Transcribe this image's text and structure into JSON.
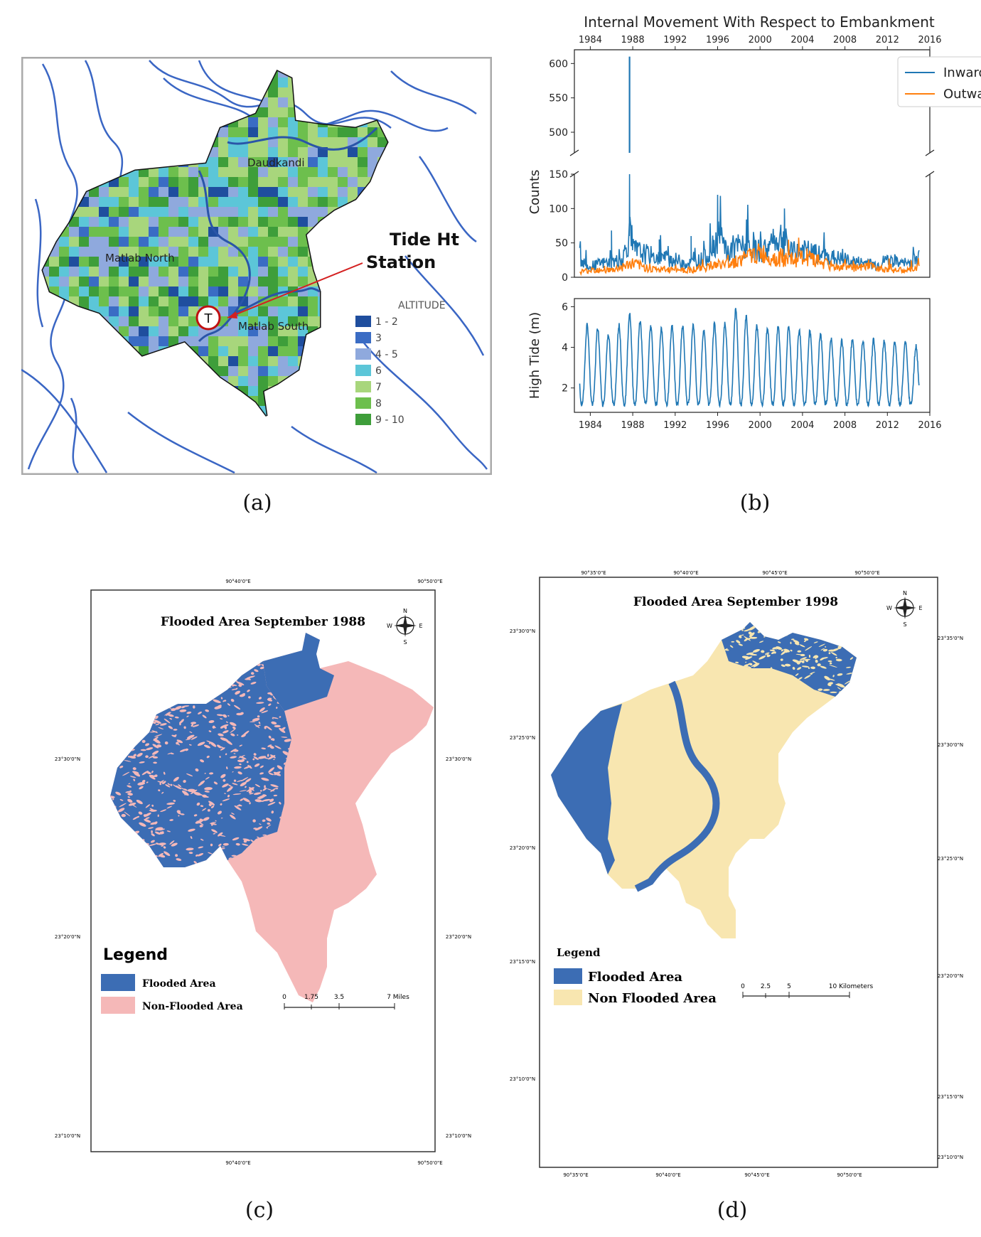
{
  "panel_a": {
    "caption": "(a)",
    "region_labels": [
      "Daudkandi",
      "Matlab North",
      "Matlab South"
    ],
    "station_label_line1": "Tide Ht",
    "station_label_line2": "Station",
    "station_marker": "T",
    "legend_title": "ALTITUDE",
    "legend": [
      {
        "label": "1 - 2",
        "color": "#1f4e9e"
      },
      {
        "label": "3",
        "color": "#3a6cc4"
      },
      {
        "label": "4 - 5",
        "color": "#8fa9dd"
      },
      {
        "label": "6",
        "color": "#5cc6d8"
      },
      {
        "label": "7",
        "color": "#a8d67c"
      },
      {
        "label": "8",
        "color": "#6dbf4d"
      },
      {
        "label": "9 - 10",
        "color": "#3e9e3a"
      }
    ]
  },
  "panel_b": {
    "caption": "(b)",
    "title": "Internal Movement With Respect to Embankment",
    "top_year_ticks": [
      "1984",
      "1988",
      "1992",
      "1996",
      "2000",
      "2004",
      "2008",
      "2012",
      "2016"
    ],
    "bottom_year_ticks": [
      "1984",
      "1988",
      "1992",
      "1996",
      "2000",
      "2004",
      "2008",
      "2012",
      "2016"
    ],
    "counts_ylabel": "Counts",
    "tide_ylabel": "High Tide (m)",
    "upper_yticks": [
      "600",
      "550",
      "500"
    ],
    "lower_yticks": [
      "150",
      "100",
      "50",
      "0"
    ],
    "tide_yticks": [
      "6",
      "4",
      "2"
    ],
    "legend_inward": "Inward",
    "legend_outward": "Outward",
    "color_inward": "#1f77b4",
    "color_outward": "#ff7f0e"
  },
  "chart_data": {
    "type": "line",
    "title": "Internal Movement With Respect to Embankment",
    "xlabel": "",
    "x_range": [
      1982.5,
      2016
    ],
    "series": [
      {
        "name": "Inward",
        "x": [
          1983,
          1984,
          1985,
          1986,
          1987,
          1987.7,
          1988,
          1989,
          1990,
          1991,
          1992,
          1993,
          1994,
          1995,
          1996,
          1997,
          1998,
          1999,
          2000,
          2001,
          2002,
          2003,
          2004,
          2005,
          2006,
          2007,
          2008,
          2009,
          2010,
          2011,
          2012,
          2013,
          2014,
          2015
        ],
        "values": [
          25,
          15,
          20,
          22,
          25,
          610,
          40,
          35,
          30,
          28,
          25,
          20,
          22,
          30,
          120,
          35,
          45,
          40,
          38,
          45,
          100,
          35,
          40,
          35,
          30,
          28,
          25,
          22,
          20,
          18,
          25,
          20,
          20,
          30
        ]
      },
      {
        "name": "Outward",
        "x": [
          1983,
          1984,
          1985,
          1986,
          1987,
          1988,
          1989,
          1990,
          1991,
          1992,
          1993,
          1994,
          1995,
          1996,
          1997,
          1998,
          1999,
          2000,
          2001,
          2002,
          2003,
          2004,
          2005,
          2006,
          2007,
          2008,
          2009,
          2010,
          2011,
          2012,
          2013,
          2014,
          2015
        ],
        "values": [
          8,
          10,
          12,
          10,
          15,
          20,
          15,
          12,
          10,
          12,
          10,
          12,
          15,
          18,
          20,
          25,
          30,
          35,
          30,
          25,
          25,
          28,
          25,
          20,
          15,
          15,
          12,
          15,
          15,
          12,
          10,
          10,
          15
        ]
      },
      {
        "name": "High Tide (m)",
        "x": [
          1983,
          1984,
          1985,
          1986,
          1987,
          1988,
          1989,
          1990,
          1991,
          1992,
          1993,
          1994,
          1995,
          1996,
          1997,
          1998,
          1999,
          2000,
          2001,
          2002,
          2003,
          2004,
          2005,
          2006,
          2007,
          2008,
          2009,
          2010,
          2011,
          2012,
          2013,
          2014,
          2015
        ],
        "values": [
          4.9,
          5.2,
          4.8,
          4.6,
          5.3,
          5.8,
          5.1,
          5.0,
          4.9,
          5.1,
          5.0,
          5.1,
          4.8,
          5.3,
          5.1,
          6.2,
          5.2,
          5.0,
          4.9,
          5.1,
          5.0,
          4.8,
          4.8,
          4.6,
          4.4,
          4.3,
          4.4,
          4.3,
          4.4,
          4.3,
          4.3,
          4.2,
          4.0
        ]
      }
    ],
    "counts_ylim": [
      0,
      150
    ],
    "counts_break_ylim": [
      470,
      620
    ],
    "tide_ylim": [
      0.8,
      6.4
    ]
  },
  "panel_c": {
    "caption": "(c)",
    "title": "Flooded Area September 1988",
    "top_coords": [
      "90°40'0\"E",
      "90°50'0\"E"
    ],
    "bottom_coords": [
      "90°40'0\"E",
      "90°50'0\"E"
    ],
    "left_coords": [
      "23°30'0\"N",
      "23°20'0\"N",
      "23°10'0\"N"
    ],
    "right_coords": [
      "23°30'0\"N",
      "23°20'0\"N",
      "23°10'0\"N"
    ],
    "compass": {
      "n": "N",
      "s": "S",
      "e": "E",
      "w": "W"
    },
    "legend_title": "Legend",
    "legend_flooded": "Flooded Area",
    "legend_nonflooded": "Non-Flooded Area",
    "scale_labels": [
      "0",
      "1.75",
      "3.5",
      "7 Miles"
    ],
    "flooded_color": "#3c6db4",
    "nonflooded_color": "#f5b8b8"
  },
  "panel_d": {
    "caption": "(d)",
    "title": "Flooded Area September 1998",
    "top_coords": [
      "90°35'0\"E",
      "90°40'0\"E",
      "90°45'0\"E",
      "90°50'0\"E"
    ],
    "bottom_coords": [
      "90°35'0\"E",
      "90°40'0\"E",
      "90°45'0\"E",
      "90°50'0\"E"
    ],
    "left_coords": [
      "23°30'0\"N",
      "23°25'0\"N",
      "23°20'0\"N",
      "23°15'0\"N",
      "23°10'0\"N"
    ],
    "right_coords": [
      "23°35'0\"N",
      "23°30'0\"N",
      "23°25'0\"N",
      "23°20'0\"N",
      "23°15'0\"N",
      "23°10'0\"N"
    ],
    "compass": {
      "n": "N",
      "s": "S",
      "e": "E",
      "w": "W"
    },
    "legend_title": "Legend",
    "legend_flooded": "Flooded Area",
    "legend_nonflooded": "Non Flooded Area",
    "scale_labels": [
      "0",
      "2.5",
      "5",
      "10 Kilometers"
    ],
    "flooded_color": "#3c6db4",
    "nonflooded_color": "#f8e6b0"
  }
}
